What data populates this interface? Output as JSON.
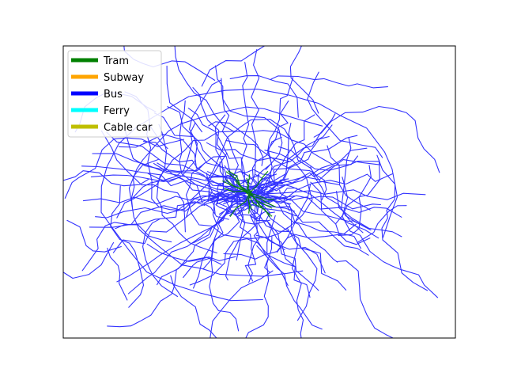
{
  "legend": {
    "items": [
      {
        "label": "Tram",
        "color": "#008000"
      },
      {
        "label": "Subway",
        "color": "#ffa500"
      },
      {
        "label": "Bus",
        "color": "#0000ff"
      },
      {
        "label": "Ferry",
        "color": "#00ffff"
      },
      {
        "label": "Cable car",
        "color": "#bfbf00"
      }
    ]
  },
  "network": {
    "bus_color": "#0000ff",
    "tram_color": "#008000"
  }
}
